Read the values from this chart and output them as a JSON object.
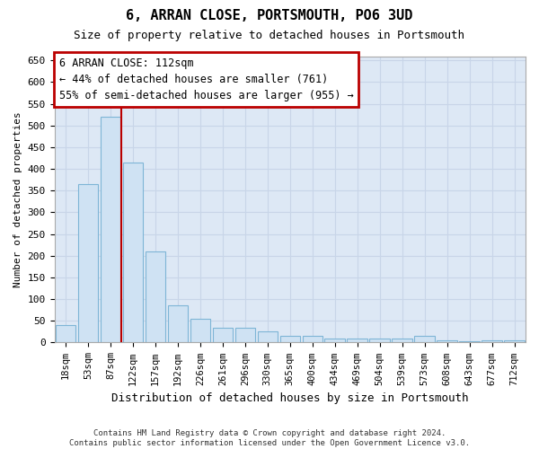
{
  "title": "6, ARRAN CLOSE, PORTSMOUTH, PO6 3UD",
  "subtitle": "Size of property relative to detached houses in Portsmouth",
  "xlabel": "Distribution of detached houses by size in Portsmouth",
  "ylabel": "Number of detached properties",
  "footnote": "Contains HM Land Registry data © Crown copyright and database right 2024.\nContains public sector information licensed under the Open Government Licence v3.0.",
  "categories": [
    "18sqm",
    "53sqm",
    "87sqm",
    "122sqm",
    "157sqm",
    "192sqm",
    "226sqm",
    "261sqm",
    "296sqm",
    "330sqm",
    "365sqm",
    "400sqm",
    "434sqm",
    "469sqm",
    "504sqm",
    "539sqm",
    "573sqm",
    "608sqm",
    "643sqm",
    "677sqm",
    "712sqm"
  ],
  "values": [
    40,
    365,
    520,
    415,
    210,
    85,
    55,
    35,
    35,
    25,
    15,
    15,
    10,
    10,
    10,
    10,
    15,
    5,
    3,
    5,
    5
  ],
  "bar_color": "#cfe2f3",
  "bar_edge_color": "#7eb5d6",
  "grid_color": "#c8d5e8",
  "bg_color": "#dde8f5",
  "vline_color": "#bb0000",
  "annotation_text": "6 ARRAN CLOSE: 112sqm\n← 44% of detached houses are smaller (761)\n55% of semi-detached houses are larger (955) →",
  "annotation_box_color": "#ffffff",
  "annotation_box_edge_color": "#bb0000",
  "ylim_max": 660,
  "yticks": [
    0,
    50,
    100,
    150,
    200,
    250,
    300,
    350,
    400,
    450,
    500,
    550,
    600,
    650
  ],
  "title_fontsize": 11,
  "subtitle_fontsize": 9,
  "ylabel_fontsize": 8,
  "xlabel_fontsize": 9,
  "tick_fontsize": 8,
  "xtick_fontsize": 7.5,
  "annot_fontsize": 8.5
}
